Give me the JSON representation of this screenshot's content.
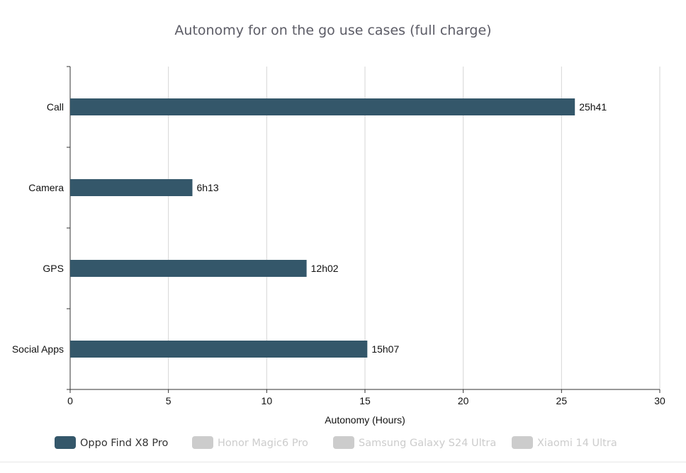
{
  "chart_data": {
    "type": "bar",
    "orientation": "horizontal",
    "title": "Autonomy for on the go use cases (full charge)",
    "xlabel": "Autonomy (Hours)",
    "ylabel": "",
    "xlim": [
      0,
      30
    ],
    "xticks": [
      0,
      5,
      10,
      15,
      20,
      25,
      30
    ],
    "categories": [
      "Call",
      "Camera",
      "GPS",
      "Social Apps"
    ],
    "series": [
      {
        "name": "Oppo Find X8 Pro",
        "values": [
          25.68,
          6.22,
          12.03,
          15.12
        ],
        "labels": [
          "25h41",
          "6h13",
          "12h02",
          "15h07"
        ],
        "color": "#34576a",
        "visible": true
      },
      {
        "name": "Honor Magic6 Pro",
        "color": "#cccccc",
        "visible": false
      },
      {
        "name": "Samsung Galaxy S24 Ultra",
        "color": "#cccccc",
        "visible": false
      },
      {
        "name": "Xiaomi 14 Ultra",
        "color": "#cccccc",
        "visible": false
      }
    ],
    "grid": "vertical",
    "legend_position": "bottom-left"
  }
}
